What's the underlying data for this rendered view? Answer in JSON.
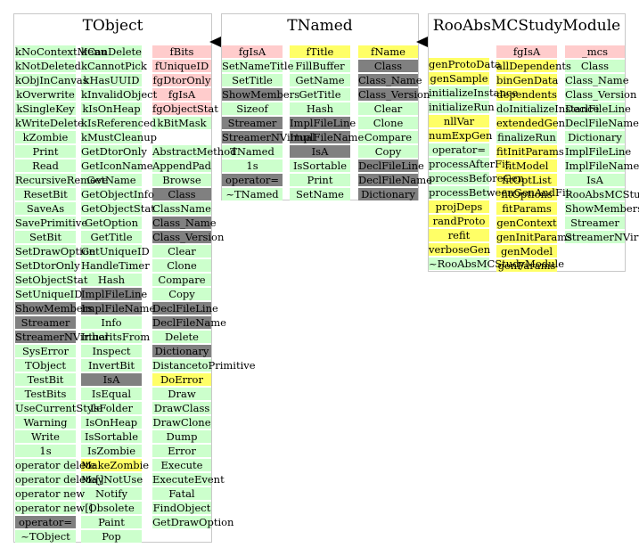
{
  "diagram": {
    "classes": [
      {
        "name": "TObject",
        "columns": [
          {
            "items": [
              {
                "label": "kNoContextMenu",
                "color": "green"
              },
              {
                "label": "kNotDeleted",
                "color": "green"
              },
              {
                "label": "kObjInCanvas",
                "color": "green"
              },
              {
                "label": "kOverwrite",
                "color": "green"
              },
              {
                "label": "kSingleKey",
                "color": "green"
              },
              {
                "label": "kWriteDelete",
                "color": "green"
              },
              {
                "label": "kZombie",
                "color": "green"
              },
              {
                "label": "Print",
                "color": "green"
              },
              {
                "label": "Read",
                "color": "green"
              },
              {
                "label": "RecursiveRemove",
                "color": "green"
              },
              {
                "label": "ResetBit",
                "color": "green"
              },
              {
                "label": "SaveAs",
                "color": "green"
              },
              {
                "label": "SavePrimitive",
                "color": "green"
              },
              {
                "label": "SetBit",
                "color": "green"
              },
              {
                "label": "SetDrawOption",
                "color": "green"
              },
              {
                "label": "SetDtorOnly",
                "color": "green"
              },
              {
                "label": "SetObjectStat",
                "color": "green"
              },
              {
                "label": "SetUniqueID",
                "color": "green"
              },
              {
                "label": "ShowMembers",
                "color": "gray"
              },
              {
                "label": "Streamer",
                "color": "gray"
              },
              {
                "label": "StreamerNVirtual",
                "color": "gray"
              },
              {
                "label": "SysError",
                "color": "green"
              },
              {
                "label": "TObject",
                "color": "green"
              },
              {
                "label": "TestBit",
                "color": "green"
              },
              {
                "label": "TestBits",
                "color": "green"
              },
              {
                "label": "UseCurrentStyle",
                "color": "green"
              },
              {
                "label": "Warning",
                "color": "green"
              },
              {
                "label": "Write",
                "color": "green"
              },
              {
                "label": "1s",
                "color": "green"
              },
              {
                "label": "operator delete",
                "color": "green"
              },
              {
                "label": "operator delete[]",
                "color": "green"
              },
              {
                "label": "operator new",
                "color": "green"
              },
              {
                "label": "operator new[]",
                "color": "green"
              },
              {
                "label": "operator=",
                "color": "gray"
              },
              {
                "label": "~TObject",
                "color": "green"
              }
            ]
          },
          {
            "items": [
              {
                "label": "kCanDelete",
                "color": "green"
              },
              {
                "label": "kCannotPick",
                "color": "green"
              },
              {
                "label": "kHasUUID",
                "color": "green"
              },
              {
                "label": "kInvalidObject",
                "color": "green"
              },
              {
                "label": "kIsOnHeap",
                "color": "green"
              },
              {
                "label": "kIsReferenced",
                "color": "green"
              },
              {
                "label": "kMustCleanup",
                "color": "green"
              },
              {
                "label": "GetDtorOnly",
                "color": "green"
              },
              {
                "label": "GetIconName",
                "color": "green"
              },
              {
                "label": "GetName",
                "color": "green"
              },
              {
                "label": "GetObjectInfo",
                "color": "green"
              },
              {
                "label": "GetObjectStat",
                "color": "green"
              },
              {
                "label": "GetOption",
                "color": "green"
              },
              {
                "label": "GetTitle",
                "color": "green"
              },
              {
                "label": "GetUniqueID",
                "color": "green"
              },
              {
                "label": "HandleTimer",
                "color": "green"
              },
              {
                "label": "Hash",
                "color": "green"
              },
              {
                "label": "ImplFileLine",
                "color": "gray"
              },
              {
                "label": "ImplFileName",
                "color": "gray"
              },
              {
                "label": "Info",
                "color": "green"
              },
              {
                "label": "InheritsFrom",
                "color": "green"
              },
              {
                "label": "Inspect",
                "color": "green"
              },
              {
                "label": "InvertBit",
                "color": "green"
              },
              {
                "label": "IsA",
                "color": "gray"
              },
              {
                "label": "IsEqual",
                "color": "green"
              },
              {
                "label": "IsFolder",
                "color": "green"
              },
              {
                "label": "IsOnHeap",
                "color": "green"
              },
              {
                "label": "IsSortable",
                "color": "green"
              },
              {
                "label": "IsZombie",
                "color": "green"
              },
              {
                "label": "MakeZombie",
                "color": "yellow"
              },
              {
                "label": "MayNotUse",
                "color": "green"
              },
              {
                "label": "Notify",
                "color": "green"
              },
              {
                "label": "Obsolete",
                "color": "green"
              },
              {
                "label": "Paint",
                "color": "green"
              },
              {
                "label": "Pop",
                "color": "green"
              }
            ]
          },
          {
            "items": [
              {
                "label": "fBits",
                "color": "pink"
              },
              {
                "label": "fUniqueID",
                "color": "pink"
              },
              {
                "label": "fgDtorOnly",
                "color": "pink"
              },
              {
                "label": "fgIsA",
                "color": "pink"
              },
              {
                "label": "fgObjectStat",
                "color": "pink"
              },
              {
                "label": "kBitMask",
                "color": "green"
              },
              {
                "label": "",
                "color": "empty"
              },
              {
                "label": "AbstractMethod",
                "color": "green"
              },
              {
                "label": "AppendPad",
                "color": "green"
              },
              {
                "label": "Browse",
                "color": "green"
              },
              {
                "label": "Class",
                "color": "gray"
              },
              {
                "label": "ClassName",
                "color": "green"
              },
              {
                "label": "Class_Name",
                "color": "gray"
              },
              {
                "label": "Class_Version",
                "color": "gray"
              },
              {
                "label": "Clear",
                "color": "green"
              },
              {
                "label": "Clone",
                "color": "green"
              },
              {
                "label": "Compare",
                "color": "green"
              },
              {
                "label": "Copy",
                "color": "green"
              },
              {
                "label": "DeclFileLine",
                "color": "gray"
              },
              {
                "label": "DeclFileName",
                "color": "gray"
              },
              {
                "label": "Delete",
                "color": "green"
              },
              {
                "label": "Dictionary",
                "color": "gray"
              },
              {
                "label": "DistancetoPrimitive",
                "color": "green"
              },
              {
                "label": "DoError",
                "color": "yellow"
              },
              {
                "label": "Draw",
                "color": "green"
              },
              {
                "label": "DrawClass",
                "color": "green"
              },
              {
                "label": "DrawClone",
                "color": "green"
              },
              {
                "label": "Dump",
                "color": "green"
              },
              {
                "label": "Error",
                "color": "green"
              },
              {
                "label": "Execute",
                "color": "green"
              },
              {
                "label": "ExecuteEvent",
                "color": "green"
              },
              {
                "label": "Fatal",
                "color": "green"
              },
              {
                "label": "FindObject",
                "color": "green"
              },
              {
                "label": "GetDrawOption",
                "color": "green"
              }
            ]
          }
        ]
      },
      {
        "name": "TNamed",
        "columns": [
          {
            "items": [
              {
                "label": "fgIsA",
                "color": "pink"
              },
              {
                "label": "SetNameTitle",
                "color": "green"
              },
              {
                "label": "SetTitle",
                "color": "green"
              },
              {
                "label": "ShowMembers",
                "color": "gray"
              },
              {
                "label": "Sizeof",
                "color": "green"
              },
              {
                "label": "Streamer",
                "color": "gray"
              },
              {
                "label": "StreamerNVirtual",
                "color": "gray"
              },
              {
                "label": "TNamed",
                "color": "green"
              },
              {
                "label": "1s",
                "color": "green"
              },
              {
                "label": "operator=",
                "color": "gray"
              },
              {
                "label": "~TNamed",
                "color": "green"
              }
            ]
          },
          {
            "items": [
              {
                "label": "fTitle",
                "color": "yellow"
              },
              {
                "label": "FillBuffer",
                "color": "green"
              },
              {
                "label": "GetName",
                "color": "green"
              },
              {
                "label": "GetTitle",
                "color": "green"
              },
              {
                "label": "Hash",
                "color": "green"
              },
              {
                "label": "ImplFileLine",
                "color": "gray"
              },
              {
                "label": "ImplFileName",
                "color": "gray"
              },
              {
                "label": "IsA",
                "color": "gray"
              },
              {
                "label": "IsSortable",
                "color": "green"
              },
              {
                "label": "Print",
                "color": "green"
              },
              {
                "label": "SetName",
                "color": "green"
              }
            ]
          },
          {
            "items": [
              {
                "label": "fName",
                "color": "yellow"
              },
              {
                "label": "Class",
                "color": "gray"
              },
              {
                "label": "Class_Name",
                "color": "gray"
              },
              {
                "label": "Class_Version",
                "color": "gray"
              },
              {
                "label": "Clear",
                "color": "green"
              },
              {
                "label": "Clone",
                "color": "green"
              },
              {
                "label": "Compare",
                "color": "green"
              },
              {
                "label": "Copy",
                "color": "green"
              },
              {
                "label": "DeclFileLine",
                "color": "gray"
              },
              {
                "label": "DeclFileName",
                "color": "gray"
              },
              {
                "label": "Dictionary",
                "color": "gray"
              }
            ]
          }
        ]
      },
      {
        "name": "RooAbsMCStudyModule",
        "columns": [
          {
            "items": [
              {
                "label": "genProtoData",
                "color": "yellow"
              },
              {
                "label": "genSample",
                "color": "yellow"
              },
              {
                "label": "initializeInstance",
                "color": "green"
              },
              {
                "label": "initializeRun",
                "color": "green"
              },
              {
                "label": "nllVar",
                "color": "yellow"
              },
              {
                "label": "numExpGen",
                "color": "yellow"
              },
              {
                "label": "operator=",
                "color": "green"
              },
              {
                "label": "processAfterFit",
                "color": "green"
              },
              {
                "label": "processBeforeGen",
                "color": "green"
              },
              {
                "label": "processBetweenGenAndFit",
                "color": "green"
              },
              {
                "label": "projDeps",
                "color": "yellow"
              },
              {
                "label": "randProto",
                "color": "yellow"
              },
              {
                "label": "refit",
                "color": "yellow"
              },
              {
                "label": "verboseGen",
                "color": "yellow"
              },
              {
                "label": "~RooAbsMCStudyModule",
                "color": "green"
              }
            ]
          },
          {
            "items": [
              {
                "label": "fgIsA",
                "color": "pink"
              },
              {
                "label": "allDependents",
                "color": "yellow"
              },
              {
                "label": "binGenData",
                "color": "yellow"
              },
              {
                "label": "dependents",
                "color": "yellow"
              },
              {
                "label": "doInitializeInstance",
                "color": "green"
              },
              {
                "label": "extendedGen",
                "color": "yellow"
              },
              {
                "label": "finalizeRun",
                "color": "green"
              },
              {
                "label": "fitInitParams",
                "color": "yellow"
              },
              {
                "label": "fitModel",
                "color": "yellow"
              },
              {
                "label": "fitOptList",
                "color": "yellow"
              },
              {
                "label": "fitOptions",
                "color": "yellow"
              },
              {
                "label": "fitParams",
                "color": "yellow"
              },
              {
                "label": "genContext",
                "color": "yellow"
              },
              {
                "label": "genInitParams",
                "color": "yellow"
              },
              {
                "label": "genModel",
                "color": "yellow"
              },
              {
                "label": "genParams",
                "color": "yellow"
              }
            ]
          },
          {
            "items": [
              {
                "label": "_mcs",
                "color": "pink"
              },
              {
                "label": "Class",
                "color": "green"
              },
              {
                "label": "Class_Name",
                "color": "green"
              },
              {
                "label": "Class_Version",
                "color": "green"
              },
              {
                "label": "DeclFileLine",
                "color": "green"
              },
              {
                "label": "DeclFileName",
                "color": "green"
              },
              {
                "label": "Dictionary",
                "color": "green"
              },
              {
                "label": "ImplFileLine",
                "color": "green"
              },
              {
                "label": "ImplFileName",
                "color": "green"
              },
              {
                "label": "IsA",
                "color": "green"
              },
              {
                "label": "RooAbsMCStudyModule",
                "color": "green"
              },
              {
                "label": "ShowMembers",
                "color": "green"
              },
              {
                "label": "Streamer",
                "color": "green"
              },
              {
                "label": "StreamerNVirtual",
                "color": "green"
              }
            ]
          }
        ]
      }
    ],
    "colors": {
      "green": "#ccffcc",
      "pink": "#ffcccc",
      "yellow": "#ffff66",
      "gray": "#808080",
      "border": "#c8c8c8",
      "arrow": "#000000"
    }
  }
}
